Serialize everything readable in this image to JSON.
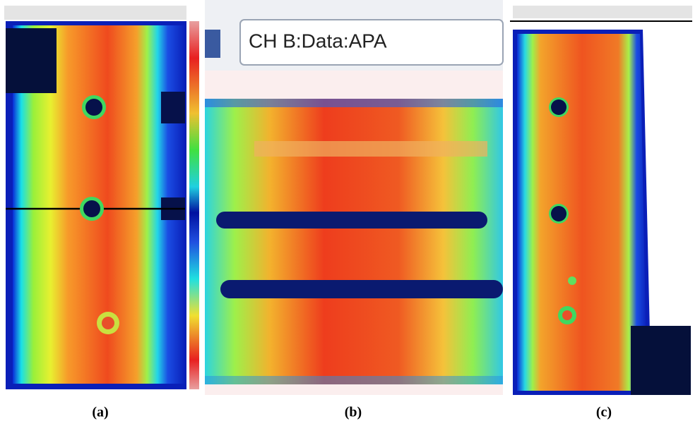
{
  "panels": [
    {
      "label": "(a)"
    },
    {
      "label": "(b)",
      "toolbar_text": "CH B:Data:APA"
    },
    {
      "label": "(c)"
    }
  ]
}
